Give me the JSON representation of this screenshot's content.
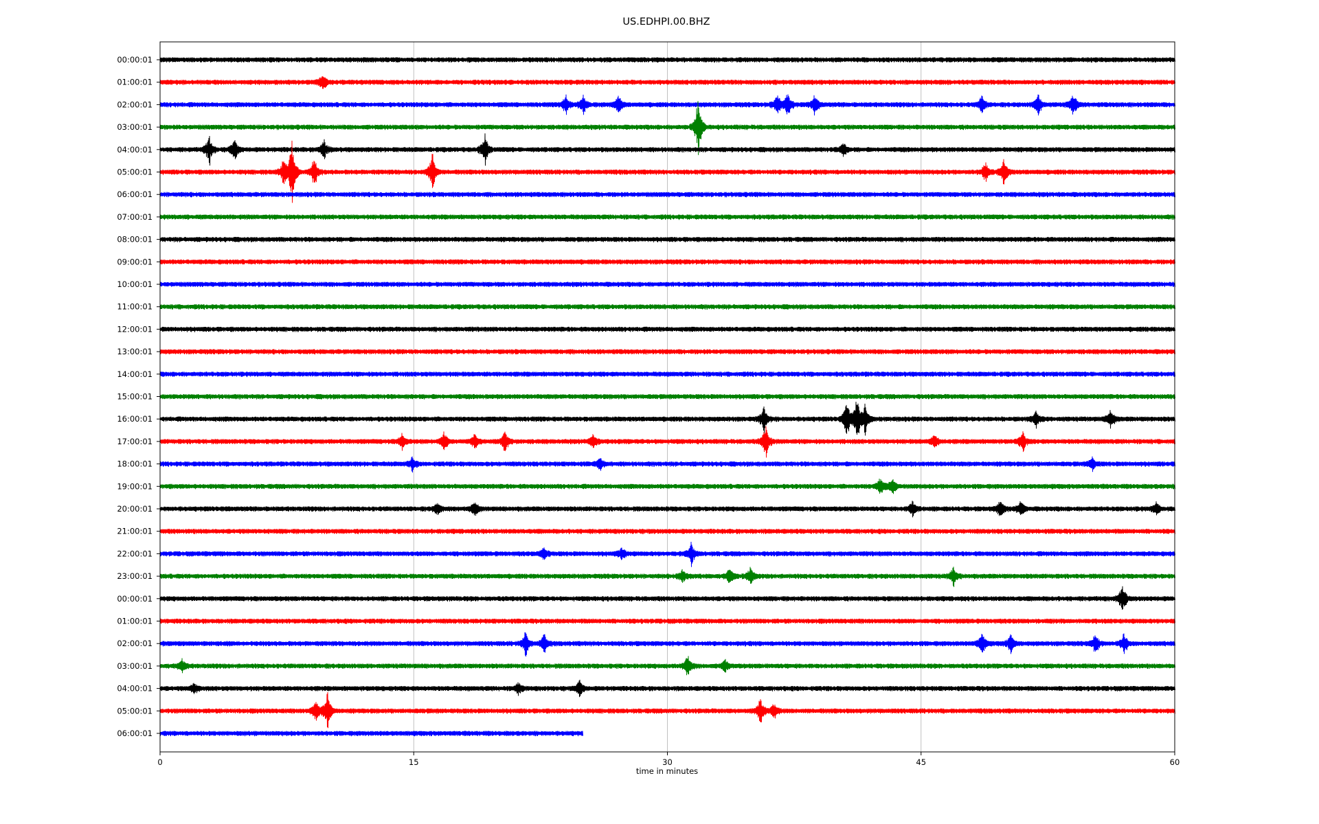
{
  "chart_data": {
    "type": "line",
    "title": "US.EDHPI.00.BHZ",
    "xlabel": "time in minutes",
    "ylabel": "",
    "x_range": [
      0,
      60
    ],
    "x_ticks": [
      0,
      15,
      30,
      45,
      60
    ],
    "grid": "vertical lines at x ticks",
    "row_labels": [
      "00:00:01",
      "01:00:01",
      "02:00:01",
      "03:00:01",
      "04:00:01",
      "05:00:01",
      "06:00:01",
      "07:00:01",
      "08:00:01",
      "09:00:01",
      "10:00:01",
      "11:00:01",
      "12:00:01",
      "13:00:01",
      "14:00:01",
      "15:00:01",
      "16:00:01",
      "17:00:01",
      "18:00:01",
      "19:00:01",
      "20:00:01",
      "21:00:01",
      "22:00:01",
      "23:00:01",
      "00:00:01",
      "01:00:01",
      "02:00:01",
      "03:00:01",
      "04:00:01",
      "05:00:01",
      "06:00:01"
    ],
    "row_colors": [
      "#000000",
      "#ff0000",
      "#0000ff",
      "#008000"
    ],
    "last_row_end_minute": 25,
    "events": [
      {
        "row": 1,
        "minute": 9.6,
        "amp": 0.45
      },
      {
        "row": 2,
        "minute": 24.0,
        "amp": 0.5
      },
      {
        "row": 2,
        "minute": 25.0,
        "amp": 0.5
      },
      {
        "row": 2,
        "minute": 27.1,
        "amp": 0.5
      },
      {
        "row": 2,
        "minute": 36.5,
        "amp": 0.55
      },
      {
        "row": 2,
        "minute": 37.1,
        "amp": 0.6
      },
      {
        "row": 2,
        "minute": 38.7,
        "amp": 0.5
      },
      {
        "row": 2,
        "minute": 48.6,
        "amp": 0.5
      },
      {
        "row": 2,
        "minute": 51.9,
        "amp": 0.6
      },
      {
        "row": 2,
        "minute": 54.0,
        "amp": 0.6
      },
      {
        "row": 3,
        "minute": 31.8,
        "amp": 1.6
      },
      {
        "row": 4,
        "minute": 2.9,
        "amp": 0.7
      },
      {
        "row": 4,
        "minute": 4.4,
        "amp": 0.6
      },
      {
        "row": 4,
        "minute": 9.7,
        "amp": 0.5
      },
      {
        "row": 4,
        "minute": 19.2,
        "amp": 0.8
      },
      {
        "row": 4,
        "minute": 40.4,
        "amp": 0.35
      },
      {
        "row": 5,
        "minute": 7.3,
        "amp": 0.7
      },
      {
        "row": 5,
        "minute": 7.8,
        "amp": 1.6
      },
      {
        "row": 5,
        "minute": 9.1,
        "amp": 0.8
      },
      {
        "row": 5,
        "minute": 16.1,
        "amp": 1.0
      },
      {
        "row": 5,
        "minute": 48.8,
        "amp": 0.5
      },
      {
        "row": 5,
        "minute": 49.9,
        "amp": 0.7
      },
      {
        "row": 16,
        "minute": 35.7,
        "amp": 0.6
      },
      {
        "row": 16,
        "minute": 40.6,
        "amp": 0.9
      },
      {
        "row": 16,
        "minute": 41.2,
        "amp": 1.1
      },
      {
        "row": 16,
        "minute": 41.7,
        "amp": 0.8
      },
      {
        "row": 16,
        "minute": 51.8,
        "amp": 0.4
      },
      {
        "row": 16,
        "minute": 56.2,
        "amp": 0.5
      },
      {
        "row": 17,
        "minute": 14.3,
        "amp": 0.35
      },
      {
        "row": 17,
        "minute": 16.8,
        "amp": 0.5
      },
      {
        "row": 17,
        "minute": 18.6,
        "amp": 0.4
      },
      {
        "row": 17,
        "minute": 20.4,
        "amp": 0.6
      },
      {
        "row": 17,
        "minute": 25.6,
        "amp": 0.35
      },
      {
        "row": 17,
        "minute": 35.8,
        "amp": 0.9
      },
      {
        "row": 17,
        "minute": 45.8,
        "amp": 0.35
      },
      {
        "row": 17,
        "minute": 51.0,
        "amp": 0.5
      },
      {
        "row": 18,
        "minute": 14.9,
        "amp": 0.3
      },
      {
        "row": 18,
        "minute": 26.0,
        "amp": 0.3
      },
      {
        "row": 18,
        "minute": 55.1,
        "amp": 0.35
      },
      {
        "row": 19,
        "minute": 42.6,
        "amp": 0.5
      },
      {
        "row": 19,
        "minute": 43.3,
        "amp": 0.4
      },
      {
        "row": 20,
        "minute": 16.4,
        "amp": 0.3
      },
      {
        "row": 20,
        "minute": 18.6,
        "amp": 0.4
      },
      {
        "row": 20,
        "minute": 44.5,
        "amp": 0.4
      },
      {
        "row": 20,
        "minute": 49.7,
        "amp": 0.5
      },
      {
        "row": 20,
        "minute": 50.9,
        "amp": 0.4
      },
      {
        "row": 20,
        "minute": 58.9,
        "amp": 0.3
      },
      {
        "row": 22,
        "minute": 22.7,
        "amp": 0.35
      },
      {
        "row": 22,
        "minute": 27.3,
        "amp": 0.3
      },
      {
        "row": 22,
        "minute": 31.4,
        "amp": 0.5
      },
      {
        "row": 23,
        "minute": 30.9,
        "amp": 0.35
      },
      {
        "row": 23,
        "minute": 33.7,
        "amp": 0.45
      },
      {
        "row": 23,
        "minute": 34.9,
        "amp": 0.45
      },
      {
        "row": 23,
        "minute": 46.9,
        "amp": 0.45
      },
      {
        "row": 24,
        "minute": 56.9,
        "amp": 0.8
      },
      {
        "row": 26,
        "minute": 21.6,
        "amp": 0.6
      },
      {
        "row": 26,
        "minute": 22.7,
        "amp": 0.5
      },
      {
        "row": 26,
        "minute": 48.6,
        "amp": 0.6
      },
      {
        "row": 26,
        "minute": 50.3,
        "amp": 0.5
      },
      {
        "row": 26,
        "minute": 55.3,
        "amp": 0.5
      },
      {
        "row": 26,
        "minute": 57.0,
        "amp": 0.5
      },
      {
        "row": 27,
        "minute": 1.3,
        "amp": 0.3
      },
      {
        "row": 27,
        "minute": 31.2,
        "amp": 0.6
      },
      {
        "row": 27,
        "minute": 33.4,
        "amp": 0.3
      },
      {
        "row": 28,
        "minute": 2.0,
        "amp": 0.3
      },
      {
        "row": 28,
        "minute": 21.2,
        "amp": 0.3
      },
      {
        "row": 28,
        "minute": 24.8,
        "amp": 0.4
      },
      {
        "row": 29,
        "minute": 9.2,
        "amp": 0.6
      },
      {
        "row": 29,
        "minute": 9.9,
        "amp": 1.0
      },
      {
        "row": 29,
        "minute": 35.5,
        "amp": 0.7
      },
      {
        "row": 29,
        "minute": 36.3,
        "amp": 0.4
      }
    ]
  }
}
